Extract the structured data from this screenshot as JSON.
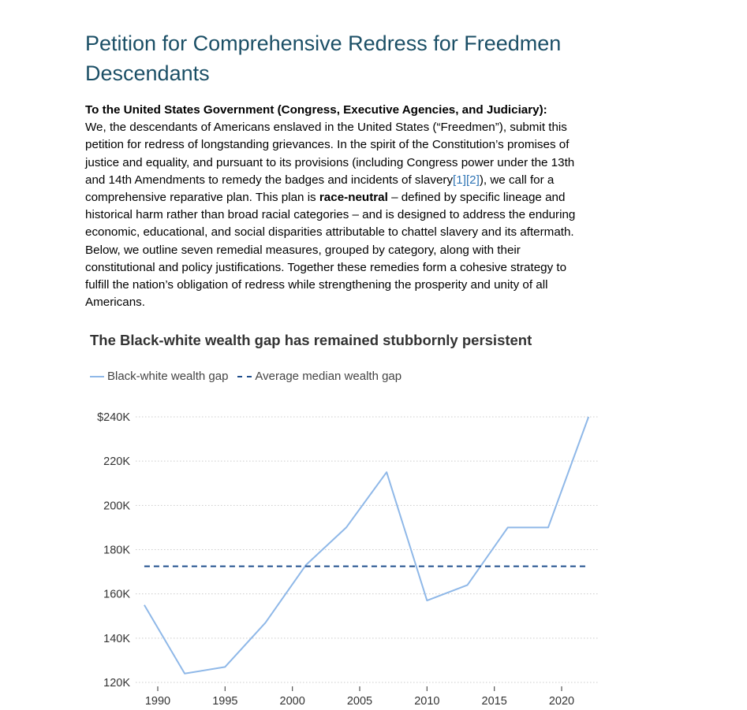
{
  "document": {
    "title": "Petition for Comprehensive Redress for Freedmen Descendants",
    "addressee": "To the United States Government (Congress, Executive Agencies, and Judiciary):",
    "lines": [
      "We, the descendants of Americans enslaved in the United States (“Freedmen”), submit this",
      "petition for redress of longstanding grievances. In the spirit of the Constitution’s promises of",
      "justice and equality, and pursuant to its provisions (including Congress power under the 13th",
      "and 14th Amendments to remedy the badges and incidents of slavery",
      "), we call for a",
      "comprehensive reparative plan. This plan is ",
      "race-neutral",
      " – defined by specific lineage and",
      "historical harm rather than broad racial categories – and is designed to address the enduring",
      "economic, educational, and social disparities attributable to chattel slavery and its aftermath.",
      "Below, we outline seven remedial measures, grouped by category, along with their",
      "constitutional and policy justifications. Together these remedies form a cohesive strategy to",
      "fulfill the nation’s obligation of redress while strengthening the prosperity and unity of all",
      "Americans."
    ],
    "refs": [
      "[1]",
      "[2]"
    ],
    "colors": {
      "title": "#1b4f66",
      "link": "#2e74b5"
    }
  },
  "chart_data": {
    "type": "line",
    "title": "The Black-white wealth gap has remained stubbornly persistent",
    "xlabel": "",
    "ylabel": "",
    "xlim": [
      1989,
      2022
    ],
    "ylim": [
      120000,
      240000
    ],
    "x_ticks": [
      1990,
      1995,
      2000,
      2005,
      2010,
      2015,
      2020
    ],
    "x_tick_labels": [
      "1990",
      "1995",
      "2000",
      "2005",
      "2010",
      "2015",
      "2020"
    ],
    "y_ticks": [
      120000,
      140000,
      160000,
      180000,
      200000,
      220000,
      240000
    ],
    "y_tick_labels": [
      "120K",
      "140K",
      "160K",
      "180K",
      "200K",
      "220K",
      "$240K"
    ],
    "grid": "horizontal dotted",
    "legend_placement": "top-left",
    "series": [
      {
        "name": "Black-white wealth gap",
        "style": "solid",
        "color": "#8fb8e8",
        "x": [
          1989,
          1992,
          1995,
          1998,
          2001,
          2004,
          2007,
          2010,
          2013,
          2016,
          2019,
          2022
        ],
        "values": [
          155000,
          124000,
          127000,
          147000,
          173000,
          190000,
          215000,
          157000,
          164000,
          190000,
          190000,
          240000
        ]
      },
      {
        "name": "Average median wealth gap",
        "style": "dashed",
        "color": "#1f4e8c",
        "x": [
          1989,
          2022
        ],
        "values": [
          172500,
          172500
        ]
      }
    ]
  }
}
